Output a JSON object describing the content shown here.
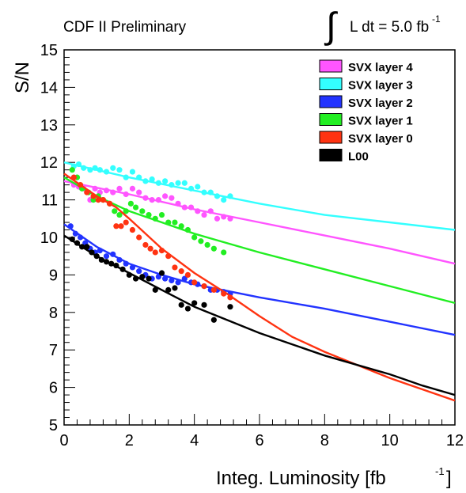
{
  "chart_data": {
    "type": "scatter",
    "header": "CDF II Preliminary",
    "lumi_annotation": {
      "integral": "∫",
      "text": "L dt = 5.0 fb",
      "superscript": "-1"
    },
    "xlabel": "Integ. Luminosity [fb",
    "xlabel_superscript": "-1",
    "xlabel_suffix": "]",
    "ylabel": "S/N",
    "xlim": [
      0,
      12
    ],
    "ylim": [
      5,
      15
    ],
    "xticks": [
      "0",
      "2",
      "4",
      "6",
      "8",
      "10",
      "12"
    ],
    "yticks": [
      "5",
      "6",
      "7",
      "8",
      "9",
      "10",
      "11",
      "12",
      "13",
      "14",
      "15"
    ],
    "grid": false,
    "legend_position": "top-right",
    "series": [
      {
        "name": "SVX layer 4",
        "color": "#ff55ff",
        "points": [
          [
            0.3,
            11.4
          ],
          [
            0.45,
            11.35
          ],
          [
            0.6,
            11.3
          ],
          [
            0.8,
            11.0
          ],
          [
            0.95,
            11.3
          ],
          [
            1.1,
            11.2
          ],
          [
            1.3,
            11.25
          ],
          [
            1.5,
            11.2
          ],
          [
            1.7,
            11.3
          ],
          [
            1.9,
            11.15
          ],
          [
            2.1,
            11.3
          ],
          [
            2.3,
            11.2
          ],
          [
            2.5,
            11.05
          ],
          [
            2.7,
            11.0
          ],
          [
            2.9,
            11.0
          ],
          [
            3.1,
            11.1
          ],
          [
            3.3,
            11.05
          ],
          [
            3.5,
            10.9
          ],
          [
            3.7,
            10.8
          ],
          [
            3.9,
            10.8
          ],
          [
            4.1,
            10.7
          ],
          [
            4.3,
            10.6
          ],
          [
            4.5,
            10.7
          ],
          [
            4.7,
            10.5
          ],
          [
            4.9,
            10.55
          ],
          [
            5.1,
            10.5
          ]
        ],
        "fit": [
          [
            0,
            11.5
          ],
          [
            2,
            11.15
          ],
          [
            4,
            10.75
          ],
          [
            6,
            10.4
          ],
          [
            8,
            10.05
          ],
          [
            10,
            9.7
          ],
          [
            12,
            9.3
          ]
        ]
      },
      {
        "name": "SVX layer 3",
        "color": "#33ffff",
        "points": [
          [
            0.3,
            11.9
          ],
          [
            0.45,
            11.95
          ],
          [
            0.6,
            11.85
          ],
          [
            0.8,
            11.8
          ],
          [
            0.95,
            11.85
          ],
          [
            1.1,
            11.8
          ],
          [
            1.3,
            11.75
          ],
          [
            1.5,
            11.85
          ],
          [
            1.7,
            11.8
          ],
          [
            1.9,
            11.6
          ],
          [
            2.1,
            11.75
          ],
          [
            2.3,
            11.6
          ],
          [
            2.5,
            11.5
          ],
          [
            2.7,
            11.55
          ],
          [
            2.9,
            11.45
          ],
          [
            3.1,
            11.5
          ],
          [
            3.3,
            11.4
          ],
          [
            3.5,
            11.45
          ],
          [
            3.7,
            11.45
          ],
          [
            3.9,
            11.3
          ],
          [
            4.1,
            11.35
          ],
          [
            4.3,
            11.2
          ],
          [
            4.5,
            11.2
          ],
          [
            4.7,
            11.1
          ],
          [
            4.9,
            11.0
          ],
          [
            5.1,
            11.1
          ]
        ],
        "fit": [
          [
            0,
            12.0
          ],
          [
            2,
            11.6
          ],
          [
            4,
            11.25
          ],
          [
            6,
            10.9
          ],
          [
            8,
            10.6
          ],
          [
            10,
            10.4
          ],
          [
            12,
            10.2
          ]
        ]
      },
      {
        "name": "SVX layer 2",
        "color": "#2233ff",
        "points": [
          [
            0.2,
            10.3
          ],
          [
            0.35,
            10.1
          ],
          [
            0.5,
            10.0
          ],
          [
            0.65,
            9.85
          ],
          [
            0.8,
            9.7
          ],
          [
            0.95,
            9.6
          ],
          [
            1.1,
            9.65
          ],
          [
            1.3,
            9.5
          ],
          [
            1.5,
            9.55
          ],
          [
            1.7,
            9.4
          ],
          [
            1.9,
            9.3
          ],
          [
            2.1,
            9.2
          ],
          [
            2.3,
            9.1
          ],
          [
            2.5,
            9.0
          ],
          [
            2.7,
            8.9
          ],
          [
            2.9,
            8.95
          ],
          [
            3.1,
            8.9
          ],
          [
            3.3,
            8.85
          ],
          [
            3.5,
            8.8
          ],
          [
            3.7,
            8.9
          ],
          [
            3.9,
            8.8
          ],
          [
            4.1,
            8.75
          ],
          [
            4.3,
            8.7
          ],
          [
            4.5,
            8.6
          ],
          [
            4.7,
            8.6
          ],
          [
            4.9,
            8.55
          ],
          [
            5.1,
            8.5
          ]
        ],
        "fit": [
          [
            0,
            10.35
          ],
          [
            1,
            9.75
          ],
          [
            2,
            9.3
          ],
          [
            3,
            9.0
          ],
          [
            4,
            8.75
          ],
          [
            6,
            8.4
          ],
          [
            8,
            8.1
          ],
          [
            10,
            7.75
          ],
          [
            12,
            7.4
          ]
        ]
      },
      {
        "name": "SVX layer 1",
        "color": "#22ee22",
        "points": [
          [
            0.25,
            11.8
          ],
          [
            0.4,
            11.6
          ],
          [
            0.55,
            11.3
          ],
          [
            0.75,
            11.2
          ],
          [
            0.9,
            11.0
          ],
          [
            1.05,
            11.1
          ],
          [
            1.2,
            11.0
          ],
          [
            1.4,
            10.9
          ],
          [
            1.55,
            10.7
          ],
          [
            1.7,
            10.6
          ],
          [
            1.9,
            10.7
          ],
          [
            2.05,
            10.9
          ],
          [
            2.2,
            10.8
          ],
          [
            2.4,
            10.7
          ],
          [
            2.6,
            10.6
          ],
          [
            2.8,
            10.5
          ],
          [
            3.0,
            10.6
          ],
          [
            3.2,
            10.4
          ],
          [
            3.4,
            10.4
          ],
          [
            3.6,
            10.3
          ],
          [
            3.8,
            10.2
          ],
          [
            4.0,
            10.0
          ],
          [
            4.2,
            9.9
          ],
          [
            4.4,
            9.8
          ],
          [
            4.6,
            9.7
          ],
          [
            4.9,
            9.6
          ]
        ],
        "fit": [
          [
            0,
            11.6
          ],
          [
            1,
            11.1
          ],
          [
            2,
            10.7
          ],
          [
            3,
            10.4
          ],
          [
            4,
            10.1
          ],
          [
            6,
            9.6
          ],
          [
            8,
            9.15
          ],
          [
            10,
            8.7
          ],
          [
            12,
            8.25
          ]
        ]
      },
      {
        "name": "SVX layer 0",
        "color": "#ff3311",
        "points": [
          [
            0.3,
            11.6
          ],
          [
            0.5,
            11.4
          ],
          [
            0.7,
            11.2
          ],
          [
            0.9,
            11.1
          ],
          [
            1.05,
            11.0
          ],
          [
            1.2,
            11.0
          ],
          [
            1.4,
            10.9
          ],
          [
            1.6,
            10.3
          ],
          [
            1.75,
            10.3
          ],
          [
            1.9,
            10.4
          ],
          [
            2.1,
            10.2
          ],
          [
            2.3,
            10.0
          ],
          [
            2.5,
            9.8
          ],
          [
            2.65,
            9.7
          ],
          [
            2.8,
            9.6
          ],
          [
            3.0,
            9.65
          ],
          [
            3.2,
            9.5
          ],
          [
            3.4,
            9.2
          ],
          [
            3.6,
            9.1
          ],
          [
            3.8,
            9.0
          ],
          [
            4.0,
            8.8
          ],
          [
            4.3,
            8.7
          ],
          [
            4.6,
            8.6
          ],
          [
            4.9,
            8.5
          ],
          [
            5.1,
            8.4
          ]
        ],
        "fit": [
          [
            0,
            11.7
          ],
          [
            1,
            11.1
          ],
          [
            1.6,
            10.8
          ],
          [
            2,
            10.5
          ],
          [
            3,
            9.7
          ],
          [
            4,
            9.05
          ],
          [
            5,
            8.5
          ],
          [
            6,
            7.9
          ],
          [
            7,
            7.35
          ],
          [
            8,
            6.95
          ],
          [
            9,
            6.6
          ],
          [
            10,
            6.25
          ],
          [
            11,
            5.95
          ],
          [
            12,
            5.65
          ]
        ]
      },
      {
        "name": "L00",
        "color": "#000000",
        "points": [
          [
            0.25,
            9.95
          ],
          [
            0.4,
            9.85
          ],
          [
            0.55,
            9.75
          ],
          [
            0.7,
            9.75
          ],
          [
            0.85,
            9.6
          ],
          [
            1.0,
            9.5
          ],
          [
            1.15,
            9.4
          ],
          [
            1.3,
            9.35
          ],
          [
            1.45,
            9.3
          ],
          [
            1.6,
            9.25
          ],
          [
            1.8,
            9.15
          ],
          [
            2.0,
            9.0
          ],
          [
            2.2,
            8.9
          ],
          [
            2.4,
            8.95
          ],
          [
            2.6,
            8.9
          ],
          [
            2.8,
            8.6
          ],
          [
            3.0,
            9.05
          ],
          [
            3.2,
            8.6
          ],
          [
            3.4,
            8.65
          ],
          [
            3.6,
            8.2
          ],
          [
            3.8,
            8.1
          ],
          [
            4.0,
            8.25
          ],
          [
            4.3,
            8.2
          ],
          [
            4.6,
            7.8
          ],
          [
            5.1,
            8.15
          ]
        ],
        "fit": [
          [
            0,
            10.05
          ],
          [
            1,
            9.5
          ],
          [
            2,
            9.05
          ],
          [
            3,
            8.6
          ],
          [
            4,
            8.15
          ],
          [
            5,
            7.8
          ],
          [
            6,
            7.45
          ],
          [
            7,
            7.15
          ],
          [
            8,
            6.85
          ],
          [
            9,
            6.6
          ],
          [
            10,
            6.35
          ],
          [
            11,
            6.05
          ],
          [
            12,
            5.8
          ]
        ]
      }
    ]
  }
}
